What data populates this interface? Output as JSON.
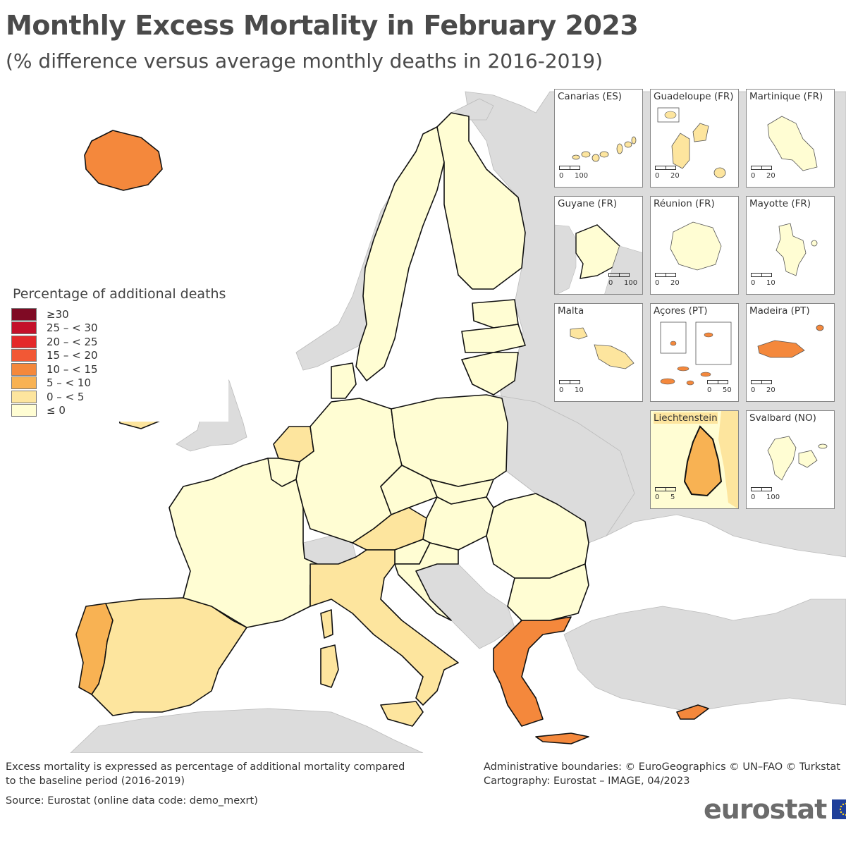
{
  "header": {
    "title": "Monthly Excess Mortality in February 2023",
    "subtitle": "(% difference versus average monthly deaths in 2016-2019)"
  },
  "legend": {
    "title": "Percentage of additional deaths",
    "classes": [
      {
        "label": "≥30",
        "color": "#7f0a24"
      },
      {
        "label": "25 – < 30",
        "color": "#c4102a"
      },
      {
        "label": "20 – < 25",
        "color": "#e4292a"
      },
      {
        "label": "15 – < 20",
        "color": "#f25835"
      },
      {
        "label": "10 – < 15",
        "color": "#f4883c"
      },
      {
        "label": "5 – < 10",
        "color": "#f8b253"
      },
      {
        "label": "0 – < 5",
        "color": "#fde59e"
      },
      {
        "label": "≤ 0",
        "color": "#fffdd3"
      }
    ]
  },
  "map_colors": {
    "non_eu": "#dcdcdc",
    "sea": "#ffffff",
    "border": "#111111"
  },
  "insets": [
    {
      "name": "Canarias (ES)",
      "scale": [
        "0",
        "100"
      ]
    },
    {
      "name": "Guadeloupe (FR)",
      "scale": [
        "0",
        "20"
      ]
    },
    {
      "name": "Martinique (FR)",
      "scale": [
        "0",
        "20"
      ]
    },
    {
      "name": "Guyane (FR)",
      "scale": [
        "0",
        "100"
      ]
    },
    {
      "name": "Réunion (FR)",
      "scale": [
        "0",
        "20"
      ]
    },
    {
      "name": "Mayotte (FR)",
      "scale": [
        "0",
        "10"
      ]
    },
    {
      "name": "Malta",
      "scale": [
        "0",
        "10"
      ]
    },
    {
      "name": "Açores (PT)",
      "scale": [
        "0",
        "50"
      ]
    },
    {
      "name": "Madeira (PT)",
      "scale": [
        "0",
        "20"
      ]
    },
    {
      "name": "Liechtenstein",
      "scale": [
        "0",
        "5"
      ]
    },
    {
      "name": "Svalbard (NO)",
      "scale": [
        "0",
        "100"
      ]
    }
  ],
  "footer": {
    "note_line1": "Excess mortality is expressed as percentage of additional mortality compared",
    "note_line2": "to the baseline period (2016-2019)",
    "source": "Source: Eurostat (online data code: demo_mexrt)",
    "credits_line1": "Administrative boundaries: © EuroGeographics © UN–FAO © Turkstat",
    "credits_line2": "Cartography: Eurostat – IMAGE, 04/2023",
    "logo": "eurostat"
  }
}
